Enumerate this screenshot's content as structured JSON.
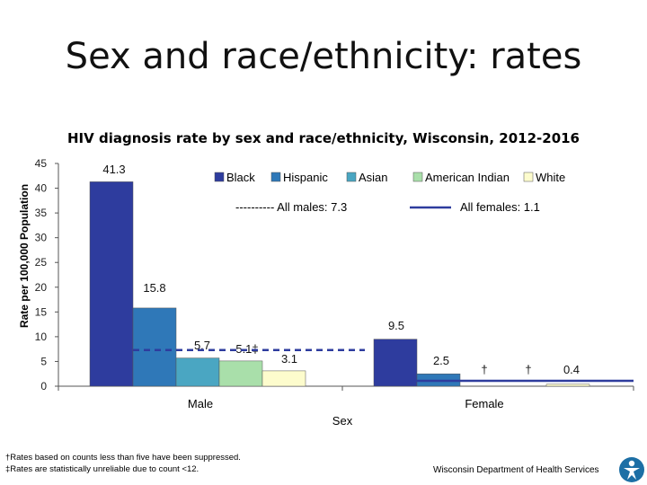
{
  "slide_title": "Sex and race/ethnicity: rates",
  "chart_data": {
    "type": "bar",
    "title": "HIV diagnosis rate by sex and race/ethnicity, Wisconsin, 2012-2016",
    "xlabel": "Sex",
    "ylabel": "Rate per 100,000 Population",
    "ylim": [
      0,
      45
    ],
    "yticks": [
      0,
      5,
      10,
      15,
      20,
      25,
      30,
      35,
      40,
      45
    ],
    "categories": [
      "Male",
      "Female"
    ],
    "series": [
      {
        "name": "Black",
        "color": "#2e3c9e",
        "values": [
          41.3,
          9.5
        ],
        "labels": [
          "41.3",
          "9.5"
        ]
      },
      {
        "name": "Hispanic",
        "color": "#2f78b8",
        "values": [
          15.8,
          2.5
        ],
        "labels": [
          "15.8",
          "2.5"
        ]
      },
      {
        "name": "Asian",
        "color": "#4aa6c2",
        "values": [
          5.7,
          0.0
        ],
        "labels": [
          "5.7",
          "†"
        ]
      },
      {
        "name": "American Indian",
        "color": "#a9dfaa",
        "values": [
          5.1,
          0.0
        ],
        "labels": [
          "5.1‡",
          "†"
        ]
      },
      {
        "name": "White",
        "color": "#fdfccd",
        "values": [
          3.1,
          0.4
        ],
        "labels": [
          "3.1",
          "0.4"
        ]
      }
    ],
    "reference_lines": [
      {
        "label": "---------- All males: 7.3",
        "value": 7.3,
        "category": "Male",
        "style": "dashed",
        "color": "#2e3c9e"
      },
      {
        "label": "All females: 1.1",
        "value": 1.1,
        "category": "Female",
        "style": "solid",
        "color": "#2e3c9e"
      }
    ],
    "legend_position": "top-right",
    "grid": false
  },
  "footnotes": [
    "†Rates based on counts less than five have been suppressed.",
    "‡Rates are statistically unreliable due to count <12."
  ],
  "source": "Wisconsin Department of Health Services",
  "logo_icon": "dhs-person-logo-icon"
}
